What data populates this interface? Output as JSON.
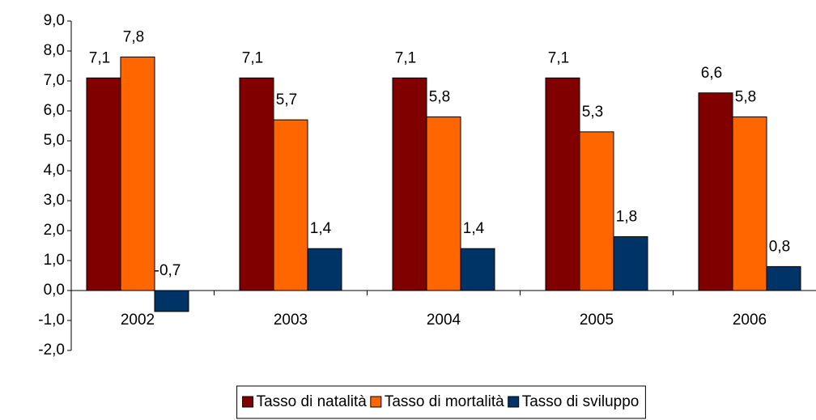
{
  "chart_data": {
    "type": "bar",
    "categories": [
      "2002",
      "2003",
      "2004",
      "2005",
      "2006"
    ],
    "series": [
      {
        "name": "Tasso di natalità",
        "color": "#800000",
        "values": [
          7.1,
          7.1,
          7.1,
          7.1,
          6.6
        ],
        "value_labels": [
          "7,1",
          "7,1",
          "7,1",
          "7,1",
          "6,6"
        ]
      },
      {
        "name": "Tasso di mortalità",
        "color": "#ff6600",
        "values": [
          7.8,
          5.7,
          5.8,
          5.3,
          5.8
        ],
        "value_labels": [
          "7,8",
          "5,7",
          "5,8",
          "5,3",
          "5,8"
        ]
      },
      {
        "name": "Tasso di sviluppo",
        "color": "#003366",
        "values": [
          -0.7,
          1.4,
          1.4,
          1.8,
          0.8
        ],
        "value_labels": [
          "-0,7",
          "1,4",
          "1,4",
          "1,8",
          "0,8"
        ]
      }
    ],
    "ylim": [
      -2,
      9
    ],
    "yticks": [
      {
        "value": -2,
        "label": "-2,0"
      },
      {
        "value": -1,
        "label": "-1,0"
      },
      {
        "value": 0,
        "label": "0,0"
      },
      {
        "value": 1,
        "label": "1,0"
      },
      {
        "value": 2,
        "label": "2,0"
      },
      {
        "value": 3,
        "label": "3,0"
      },
      {
        "value": 4,
        "label": "4,0"
      },
      {
        "value": 5,
        "label": "5,0"
      },
      {
        "value": 6,
        "label": "6,0"
      },
      {
        "value": 7,
        "label": "7,0"
      },
      {
        "value": 8,
        "label": "8,0"
      },
      {
        "value": 9,
        "label": "9,0"
      }
    ],
    "grid": false,
    "legend": "bottom"
  }
}
